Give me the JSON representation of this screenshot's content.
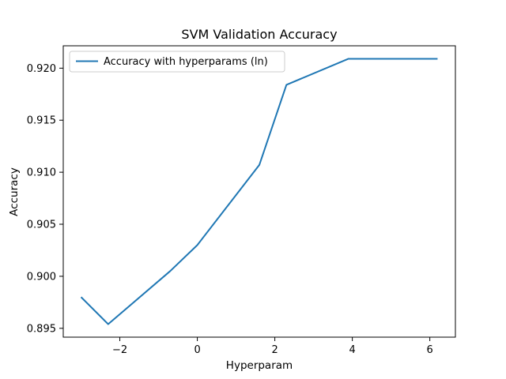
{
  "chart_data": {
    "type": "line",
    "title": "SVM Validation Accuracy",
    "xlabel": "Hyperparam",
    "ylabel": "Accuracy",
    "xlim": [
      -3.46,
      6.66
    ],
    "ylim": [
      0.89415,
      0.92215
    ],
    "xticks": [
      -2,
      0,
      2,
      4,
      6
    ],
    "xtick_labels": [
      "−2",
      "0",
      "2",
      "4",
      "6"
    ],
    "yticks": [
      0.895,
      0.9,
      0.905,
      0.91,
      0.915,
      0.92
    ],
    "ytick_labels": [
      "0.895",
      "0.900",
      "0.905",
      "0.910",
      "0.915",
      "0.920"
    ],
    "grid": false,
    "legend_position": "upper-left",
    "series": [
      {
        "name": "Accuracy with hyperparams (ln)",
        "color": "#1f77b4",
        "x": [
          -3.0,
          -2.3,
          -0.7,
          0.0,
          1.6,
          2.3,
          3.9,
          6.2
        ],
        "y": [
          0.898,
          0.8954,
          0.9005,
          0.903,
          0.9107,
          0.9184,
          0.9209,
          0.9209
        ]
      }
    ]
  }
}
